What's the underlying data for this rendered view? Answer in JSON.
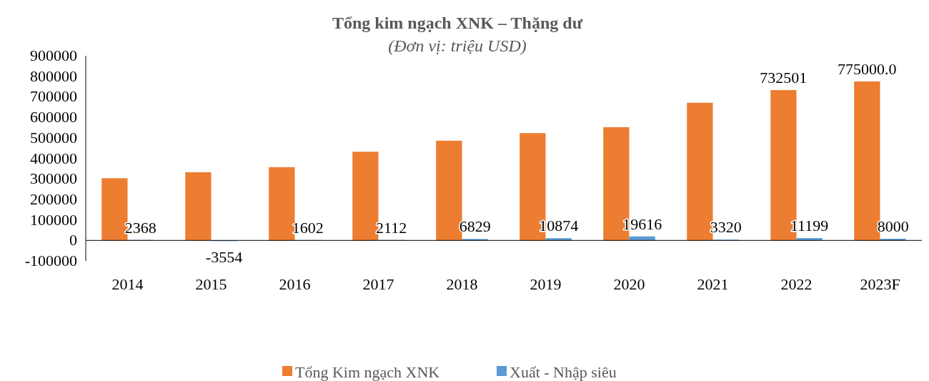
{
  "chart_data": {
    "type": "bar",
    "title": "Tổng kim ngạch XNK – Thặng dư",
    "subtitle": "(Đơn vị: triệu USD)",
    "categories": [
      "2014",
      "2015",
      "2016",
      "2017",
      "2018",
      "2019",
      "2020",
      "2021",
      "2022",
      "2023F"
    ],
    "series": [
      {
        "name": "Tổng Kim ngạch XNK",
        "color": "#ed7d31",
        "values": [
          303000,
          332000,
          357000,
          432000,
          486000,
          523000,
          552000,
          671000,
          732501,
          775000
        ],
        "value_labels": [
          null,
          null,
          null,
          null,
          null,
          null,
          null,
          null,
          "732501",
          "775000.0"
        ]
      },
      {
        "name": "Xuất - Nhập siêu",
        "color": "#5b9bd5",
        "values": [
          2368,
          -3554,
          1602,
          2112,
          6829,
          10874,
          19616,
          3320,
          11199,
          8000
        ],
        "value_labels": [
          "2368",
          "-3554",
          "1602",
          "2112",
          "6829",
          "10874",
          "19616",
          "3320",
          "11199",
          "8000"
        ]
      }
    ],
    "ylim": [
      -100000,
      900000
    ],
    "yticks": [
      -100000,
      0,
      100000,
      200000,
      300000,
      400000,
      500000,
      600000,
      700000,
      800000,
      900000
    ],
    "grid": false,
    "legend": "bottom"
  }
}
